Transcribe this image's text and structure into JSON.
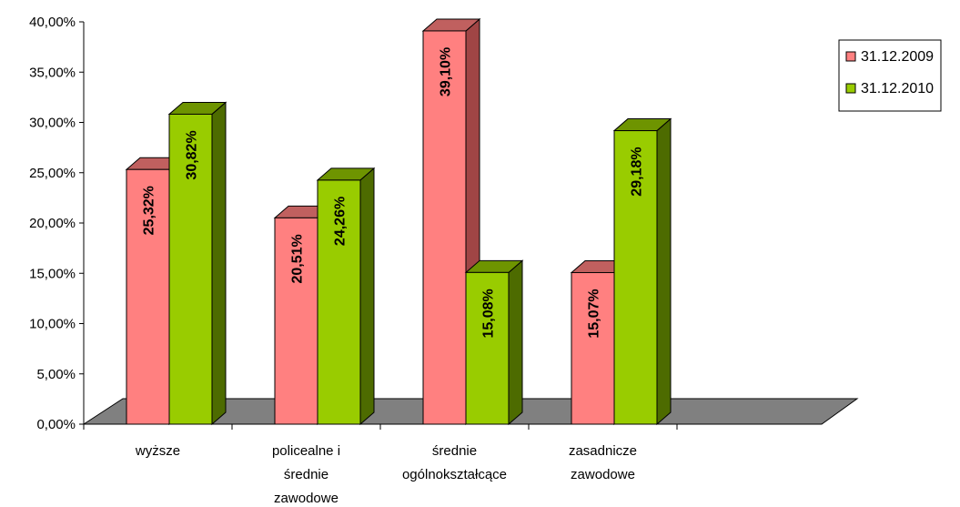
{
  "chart_data": {
    "type": "bar",
    "categories": [
      [
        "wyższe"
      ],
      [
        "policealne i",
        "średnie",
        "zawodowe"
      ],
      [
        "średnie",
        "ogólnokształcące"
      ],
      [
        "zasadnicze",
        "zawodowe"
      ]
    ],
    "series": [
      {
        "name": "31.12.2009",
        "values": [
          25.32,
          20.51,
          39.1,
          15.07
        ],
        "labels": [
          "25,32%",
          "20,51%",
          "39,10%",
          "15,07%"
        ],
        "color": "#ff8080",
        "top_color": "#c0605f",
        "side_color": "#a04545"
      },
      {
        "name": "31.12.2010",
        "values": [
          30.82,
          24.26,
          15.08,
          29.18
        ],
        "labels": [
          "30,82%",
          "24,26%",
          "15,08%",
          "29,18%"
        ],
        "color": "#99cc00",
        "top_color": "#6e9400",
        "side_color": "#4d6b00"
      }
    ],
    "y_ticks": [
      "0,00%",
      "5,00%",
      "10,00%",
      "15,00%",
      "20,00%",
      "25,00%",
      "30,00%",
      "35,00%",
      "40,00%"
    ],
    "ylim": [
      0,
      40
    ],
    "floor_color": "#808080",
    "legend_position": "right",
    "grid": false,
    "title": "",
    "xlabel": "",
    "ylabel": ""
  }
}
